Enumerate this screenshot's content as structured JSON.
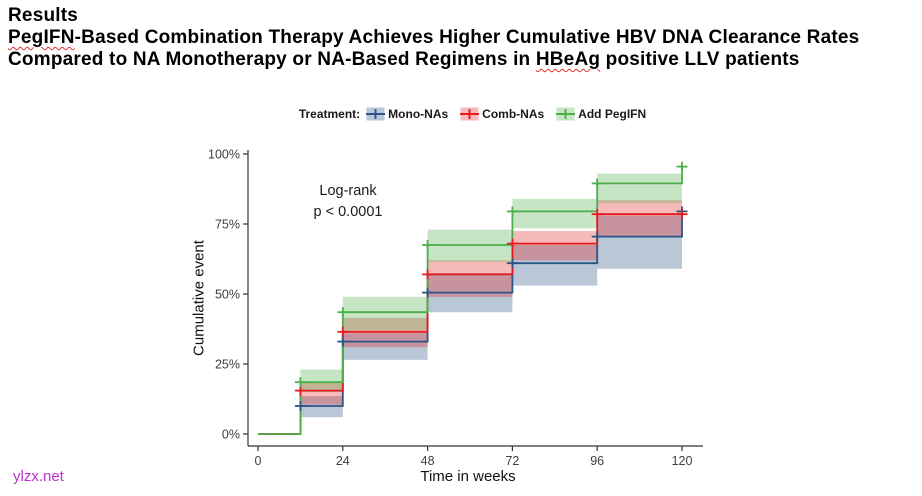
{
  "header": {
    "line1": "Results",
    "line2_word": "PegIFN",
    "line2_rest": "-Based Combination Therapy Achieves Higher Cumulative HBV DNA Clearance Rates",
    "line3_pre": "Compared to NA Monotherapy or NA-Based Regimens in ",
    "line3_word": "HBeAg",
    "line3_rest": " positive LLV patients"
  },
  "watermark": "ylzx.net",
  "chart_data": {
    "type": "line",
    "subtype": "step-cumulative-incidence-with-ci",
    "title": "",
    "xlabel": "Time in weeks",
    "ylabel": "Cumulative event",
    "xlim": [
      0,
      120
    ],
    "ylim": [
      0,
      100
    ],
    "grid": "off",
    "x_ticks": {
      "values": [
        0,
        24,
        48,
        72,
        96,
        120
      ],
      "labels": [
        "0",
        "24",
        "48",
        "72",
        "96",
        "120"
      ]
    },
    "y_ticks": {
      "values": [
        0,
        25,
        50,
        75,
        100
      ],
      "labels": [
        "0%",
        "25%",
        "50%",
        "75%",
        "100%"
      ]
    },
    "annotation": {
      "line1": "Log-rank",
      "line2": "p < 0.0001"
    },
    "legend_title": "Treatment:",
    "legend_position": "top-center",
    "event_times_weeks": [
      12,
      24,
      48,
      72,
      96,
      120
    ],
    "series": [
      {
        "name": "Mono-NAs",
        "color": "#2b5486",
        "fill": "rgba(43,84,134,0.33)",
        "values_pct": [
          10,
          33,
          50.5,
          61,
          70.5,
          79.5
        ],
        "ci_lower_pct": [
          6,
          26.5,
          43.5,
          53,
          59
        ],
        "ci_upper_pct": [
          13.5,
          36,
          57.5,
          67.5,
          78
        ]
      },
      {
        "name": "Comb-NAs",
        "color": "#e41a1c",
        "fill": "rgba(228,26,28,0.30)",
        "values_pct": [
          15.5,
          36.5,
          57,
          68,
          78.5,
          78.5
        ],
        "ci_lower_pct": [
          10.5,
          31,
          49,
          62,
          70.5
        ],
        "ci_upper_pct": [
          18.5,
          41.5,
          62,
          72.5,
          83.5
        ]
      },
      {
        "name": "Add PegIFN",
        "color": "#4daf4a",
        "fill": "rgba(77,175,74,0.32)",
        "values_pct": [
          18.5,
          43.5,
          67.5,
          79.5,
          89.5,
          95.5
        ],
        "ci_lower_pct": [
          15,
          37,
          61.5,
          73.5,
          82.5
        ],
        "ci_upper_pct": [
          23,
          49,
          73,
          84,
          93
        ]
      }
    ]
  }
}
